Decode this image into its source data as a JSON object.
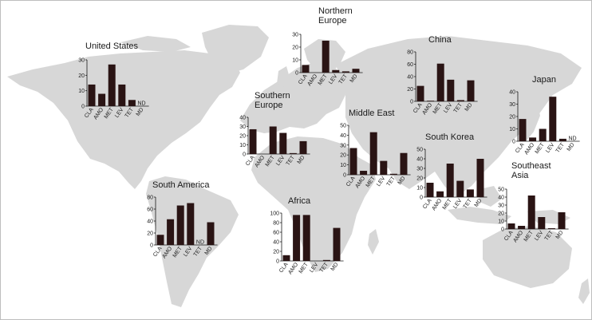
{
  "colors": {
    "land": "#d7d7d7",
    "ocean": "#ffffff",
    "bar": "#2a1414",
    "border": "#bdbdbd"
  },
  "chart_data": [
    {
      "type": "bar",
      "region": "United States",
      "title": "United States",
      "categories": [
        "CLA",
        "AMO",
        "MET",
        "LEV",
        "TET",
        "MD"
      ],
      "values": [
        14,
        8,
        27,
        14,
        4,
        null
      ],
      "nd": [
        false,
        false,
        false,
        false,
        false,
        true
      ],
      "ylim": [
        0,
        30
      ],
      "yticks": [
        0,
        10,
        20,
        30
      ],
      "nd_label": "ND"
    },
    {
      "type": "bar",
      "region": "Northern Europe",
      "title": "Northern Europe",
      "categories": [
        "CLA",
        "AMO",
        "MET",
        "LEV",
        "TET",
        "MD"
      ],
      "values": [
        6,
        0,
        25,
        2,
        1,
        3
      ],
      "nd": [
        false,
        false,
        false,
        false,
        false,
        false
      ],
      "ylim": [
        0,
        30
      ],
      "yticks": [
        0,
        10,
        20,
        30
      ],
      "nd_label": ""
    },
    {
      "type": "bar",
      "region": "China",
      "title": "China",
      "categories": [
        "CLA",
        "AMO",
        "MET",
        "LEV",
        "TET",
        "MD"
      ],
      "values": [
        25,
        1,
        61,
        35,
        2,
        34
      ],
      "nd": [
        false,
        false,
        false,
        false,
        false,
        false
      ],
      "ylim": [
        0,
        80
      ],
      "yticks": [
        0,
        20,
        40,
        60,
        80
      ],
      "nd_label": ""
    },
    {
      "type": "bar",
      "region": "Japan",
      "title": "Japan",
      "categories": [
        "CLA",
        "AMO",
        "MET",
        "LEV",
        "TET",
        "MD"
      ],
      "values": [
        18,
        3,
        10,
        36,
        2,
        null
      ],
      "nd": [
        false,
        false,
        false,
        false,
        false,
        true
      ],
      "ylim": [
        0,
        40
      ],
      "yticks": [
        0,
        10,
        20,
        30,
        40
      ],
      "nd_label": "ND"
    },
    {
      "type": "bar",
      "region": "Southern Europe",
      "title": "Southern Europe",
      "categories": [
        "CLA",
        "AMO",
        "MET",
        "LEV",
        "TET",
        "MD"
      ],
      "values": [
        27,
        0,
        30,
        23,
        1,
        14
      ],
      "nd": [
        false,
        false,
        false,
        false,
        false,
        false
      ],
      "ylim": [
        0,
        40
      ],
      "yticks": [
        0,
        10,
        20,
        30,
        40
      ],
      "nd_label": ""
    },
    {
      "type": "bar",
      "region": "Middle East",
      "title": "Middle East",
      "categories": [
        "CLA",
        "AMO",
        "MET",
        "LEV",
        "TET",
        "MD"
      ],
      "values": [
        27,
        4,
        43,
        14,
        1,
        22
      ],
      "nd": [
        false,
        false,
        false,
        false,
        false,
        false
      ],
      "ylim": [
        0,
        50
      ],
      "yticks": [
        0,
        10,
        20,
        30,
        40,
        50
      ],
      "nd_label": ""
    },
    {
      "type": "bar",
      "region": "South Korea",
      "title": "South Korea",
      "categories": [
        "CLA",
        "AMO",
        "MET",
        "LEV",
        "TET",
        "MD"
      ],
      "values": [
        15,
        6,
        35,
        17,
        8,
        40
      ],
      "nd": [
        false,
        false,
        false,
        false,
        false,
        false
      ],
      "ylim": [
        0,
        50
      ],
      "yticks": [
        0,
        10,
        20,
        30,
        40,
        50
      ],
      "nd_label": ""
    },
    {
      "type": "bar",
      "region": "Southeast Asia",
      "title": "Southeast Asia",
      "categories": [
        "CLA",
        "AMO",
        "MET",
        "LEV",
        "TET",
        "MD"
      ],
      "values": [
        7,
        4,
        42,
        15,
        1,
        21
      ],
      "nd": [
        false,
        false,
        false,
        false,
        false,
        false
      ],
      "ylim": [
        0,
        50
      ],
      "yticks": [
        0,
        10,
        20,
        30,
        40,
        50
      ],
      "nd_label": ""
    },
    {
      "type": "bar",
      "region": "South America",
      "title": "South America",
      "categories": [
        "CLA",
        "AMO",
        "MET",
        "LEV",
        "TET",
        "MD"
      ],
      "values": [
        17,
        43,
        66,
        70,
        null,
        38
      ],
      "nd": [
        false,
        false,
        false,
        false,
        true,
        false
      ],
      "ylim": [
        0,
        80
      ],
      "yticks": [
        0,
        20,
        40,
        60,
        80
      ],
      "nd_label": "ND"
    },
    {
      "type": "bar",
      "region": "Africa",
      "title": "Africa",
      "categories": [
        "CLA",
        "AMO",
        "MET",
        "LEV",
        "TET",
        "MD"
      ],
      "values": [
        12,
        96,
        96,
        0,
        2,
        69
      ],
      "nd": [
        false,
        false,
        false,
        false,
        false,
        false
      ],
      "ylim": [
        0,
        100
      ],
      "yticks": [
        0,
        20,
        40,
        60,
        80,
        100
      ],
      "nd_label": ""
    }
  ]
}
